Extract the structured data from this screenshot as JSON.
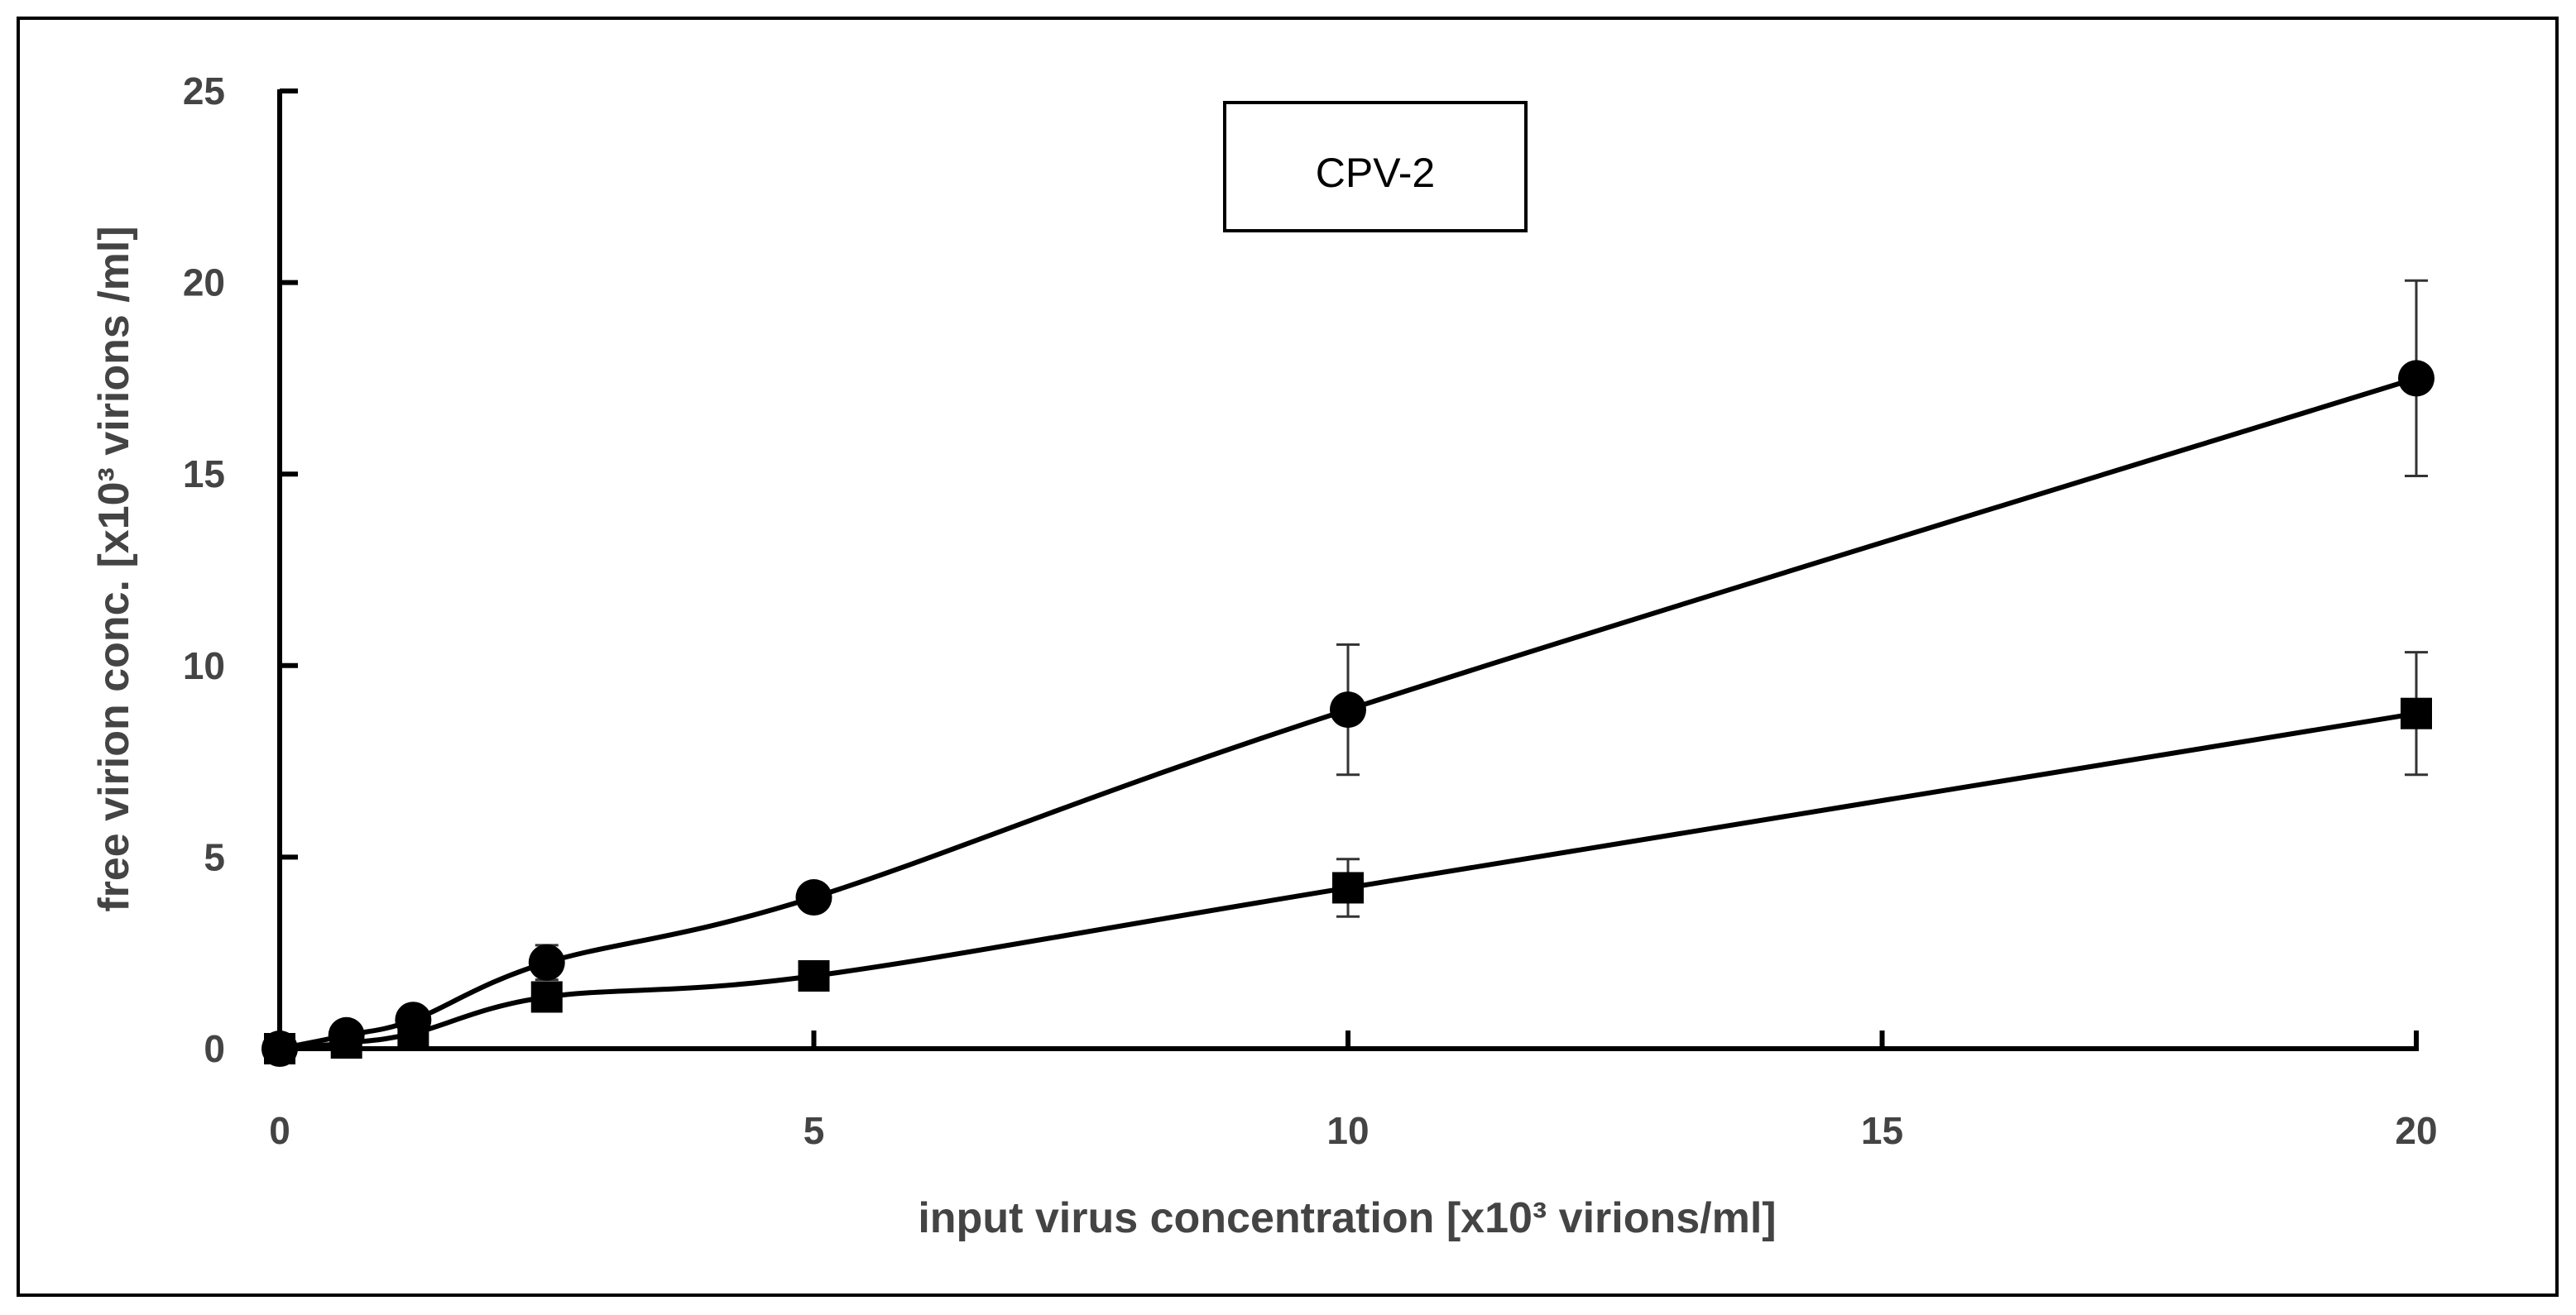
{
  "chart_data": {
    "type": "line",
    "title": "",
    "annotation": "CPV-2",
    "xlabel": "input virus concentration [x10³ virions/ml]",
    "ylabel": "free virion conc. [x10³ virions /ml]",
    "xlim": [
      0,
      20
    ],
    "ylim": [
      0,
      25
    ],
    "xticks": [
      0,
      5,
      10,
      15,
      20
    ],
    "yticks": [
      0,
      5,
      10,
      15,
      20,
      25
    ],
    "grid": false,
    "series": [
      {
        "name": "circles",
        "marker": "circle",
        "x": [
          0,
          0.625,
          1.25,
          2.5,
          5,
          10,
          20
        ],
        "y": [
          0,
          0.35,
          0.75,
          2.25,
          3.95,
          8.85,
          17.5
        ],
        "err": [
          0,
          0,
          0,
          0.45,
          0,
          1.7,
          2.55
        ]
      },
      {
        "name": "squares",
        "marker": "square",
        "x": [
          0,
          0.625,
          1.25,
          2.5,
          5,
          10,
          20
        ],
        "y": [
          0,
          0.15,
          0.4,
          1.35,
          1.9,
          4.2,
          8.75
        ],
        "err": [
          0,
          0,
          0,
          0,
          0.3,
          0.75,
          1.6
        ]
      }
    ]
  }
}
